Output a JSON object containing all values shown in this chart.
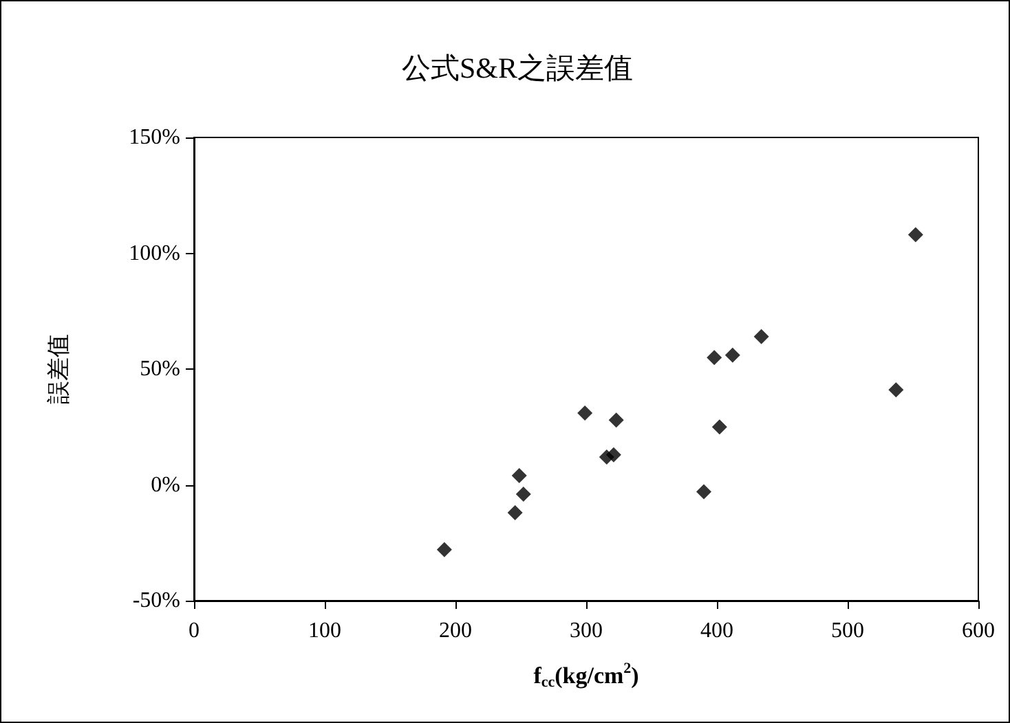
{
  "chart_data": {
    "type": "scatter",
    "title": "公式S&R之誤差值",
    "xlabel": "f$_{cc}$(kg/cm$^{2}$)",
    "ylabel": "誤差值",
    "x": [
      191.5,
      245.6,
      248.8,
      252,
      299,
      315.7,
      321,
      323,
      390,
      398,
      402,
      412,
      434,
      537,
      552
    ],
    "values": [
      -28,
      -12,
      4,
      -4,
      31,
      12,
      13,
      28,
      -3,
      55,
      25,
      56,
      64,
      41,
      108
    ],
    "color": "#000000",
    "marker": "diamond",
    "grid": false,
    "xlim": [
      0,
      600
    ],
    "xticks": [
      0,
      100,
      200,
      300,
      400,
      500,
      600
    ],
    "ylim": [
      -50,
      150
    ],
    "yticks": [
      {
        "value": -50,
        "label": "-50%"
      },
      {
        "value": 0,
        "label": "0%"
      },
      {
        "value": 50,
        "label": "50%"
      },
      {
        "value": 100,
        "label": "100%"
      },
      {
        "value": 150,
        "label": "150%"
      }
    ]
  }
}
